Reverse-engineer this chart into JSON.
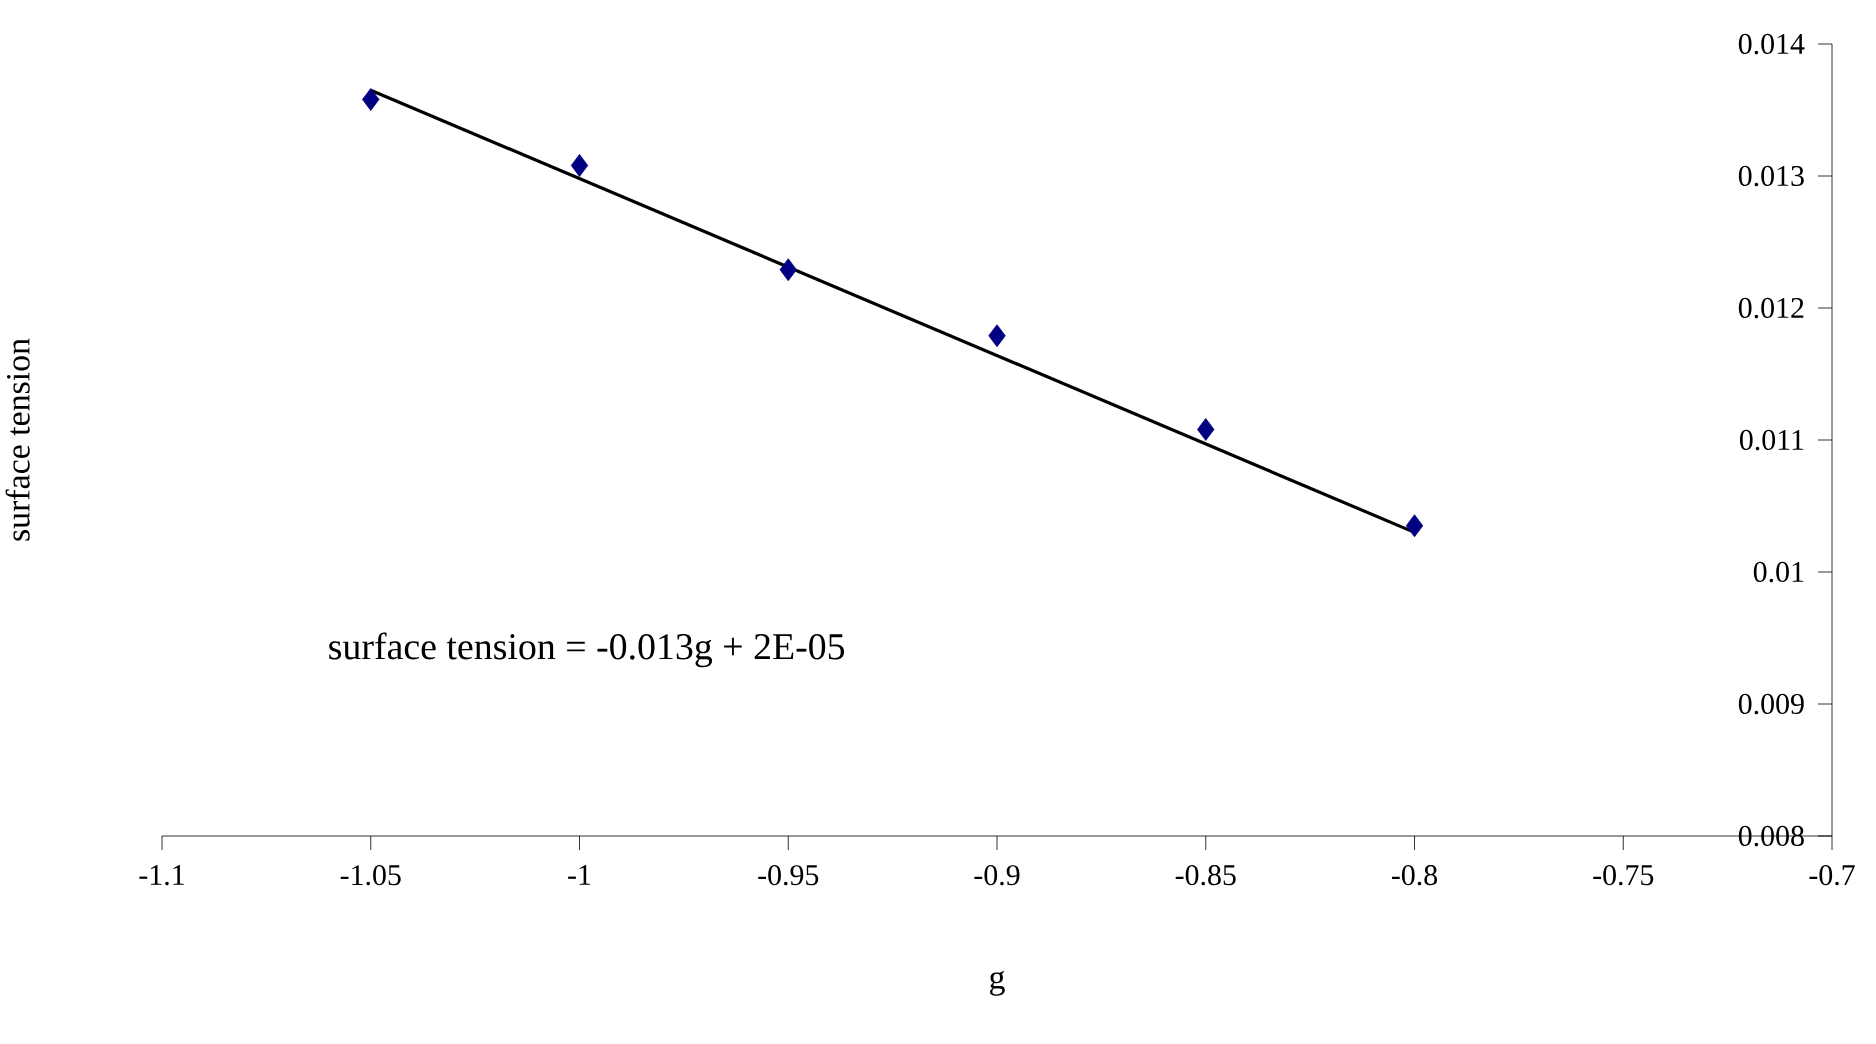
{
  "chart_data": {
    "type": "scatter",
    "xlabel": "g",
    "ylabel": "surface tension",
    "annotations": [
      "surface tension = -0.013g + 2E-05"
    ],
    "series": [
      {
        "color": "#000080",
        "marker": "diamond",
        "x": [
          -1.05,
          -1.0,
          -0.95,
          -0.9,
          -0.85,
          -0.8
        ],
        "values": [
          0.01358,
          0.01308,
          0.01229,
          0.01179,
          0.01108,
          0.01035
        ]
      },
      {
        "type": "line",
        "color": "#000000",
        "marker": "none",
        "line_style": "solid",
        "x": [
          -1.05,
          -0.8
        ],
        "values": [
          0.01365,
          0.0103
        ]
      }
    ],
    "xlim": [
      -1.1,
      -0.7
    ],
    "ylim": [
      0.008,
      0.014
    ],
    "xticks": [
      -1.1,
      -1.05,
      -1,
      -0.95,
      -0.9,
      -0.85,
      -0.8,
      -0.75,
      -0.7
    ],
    "yticks": [
      0.008,
      0.009,
      0.01,
      0.011,
      0.012,
      0.013,
      0.014
    ],
    "grid": false
  }
}
